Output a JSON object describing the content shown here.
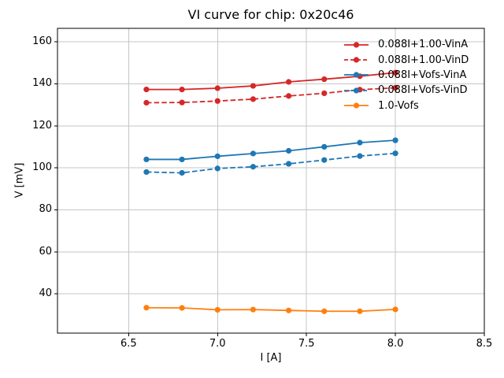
{
  "chart_data": {
    "type": "line",
    "title": "VI curve for chip: 0x20c46",
    "xlabel": "I [A]",
    "ylabel": "V [mV]",
    "xlim": [
      6.1,
      8.5
    ],
    "ylim": [
      21.3,
      166.4
    ],
    "grid": true,
    "legend_position": "upper right",
    "x_ticks": [
      6.5,
      7.0,
      7.5,
      8.0,
      8.5
    ],
    "x_tick_labels": [
      "6.5",
      "7.0",
      "7.5",
      "8.0",
      "8.5"
    ],
    "y_ticks": [
      40,
      60,
      80,
      100,
      120,
      140,
      160
    ],
    "y_tick_labels": [
      "40",
      "60",
      "80",
      "100",
      "120",
      "140",
      "160"
    ],
    "x": [
      6.6,
      6.8,
      7.0,
      7.2,
      7.4,
      7.6,
      7.8,
      8.0
    ],
    "series": [
      {
        "name": "0.088I+1.00-VinA",
        "color": "#d62728",
        "style": "solid",
        "values": [
          137.3,
          137.3,
          137.9,
          139.0,
          140.9,
          142.2,
          143.6,
          145.3
        ]
      },
      {
        "name": "0.088I+1.00-VinD",
        "color": "#d62728",
        "style": "dashed",
        "values": [
          131.0,
          131.1,
          131.8,
          132.7,
          134.2,
          135.5,
          137.2,
          138.1
        ]
      },
      {
        "name": "0.088I+Vofs-VinA",
        "color": "#1f77b4",
        "style": "solid",
        "values": [
          104.0,
          104.0,
          105.5,
          106.8,
          108.1,
          110.0,
          112.0,
          113.1
        ]
      },
      {
        "name": "0.088I+Vofs-VinD",
        "color": "#1f77b4",
        "style": "dashed",
        "values": [
          98.0,
          97.6,
          99.7,
          100.5,
          101.9,
          103.7,
          105.6,
          106.9
        ]
      },
      {
        "name": "1.0-Vofs",
        "color": "#ff7f0e",
        "style": "solid",
        "values": [
          33.4,
          33.3,
          32.4,
          32.5,
          32.1,
          31.7,
          31.7,
          32.6
        ]
      }
    ],
    "grid_color": "#c6c6c6",
    "spine_color": "#000000"
  }
}
